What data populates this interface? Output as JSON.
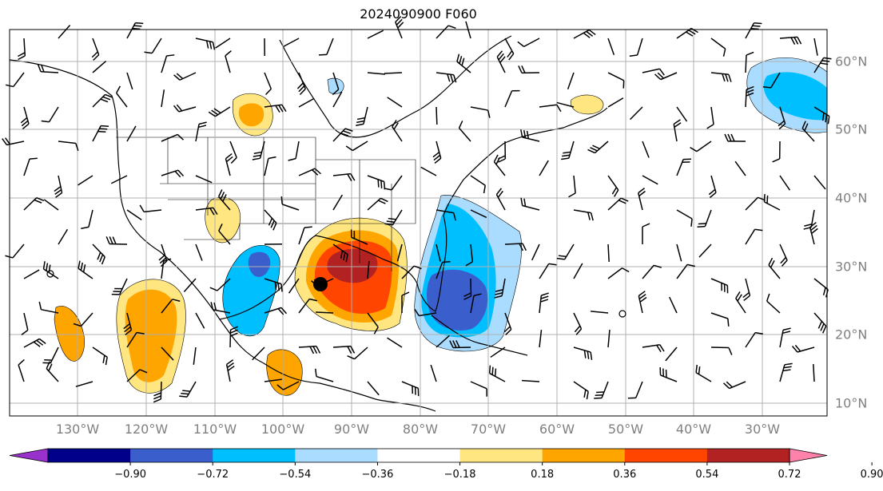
{
  "title": "2024090900 F060",
  "map": {
    "lon_labels": [
      "130°W",
      "120°W",
      "110°W",
      "100°W",
      "90°W",
      "80°W",
      "70°W",
      "60°W",
      "50°W",
      "40°W",
      "30°W"
    ],
    "lat_labels": [
      "60°N",
      "50°N",
      "40°N",
      "30°N",
      "20°N",
      "10°N"
    ],
    "grid": "on",
    "storm_marker": "hurricane-center",
    "fields": [
      "shaded anomaly",
      "coastlines",
      "state borders",
      "wind barbs"
    ]
  },
  "colorbar": {
    "tick_labels": [
      "−0.90",
      "−0.72",
      "−0.54",
      "−0.36",
      "−0.18",
      "0.18",
      "0.36",
      "0.54",
      "0.72",
      "0.90"
    ],
    "colors": [
      "#9932cc",
      "#00008b",
      "#3a5fcd",
      "#00bfff",
      "#aadcff",
      "#ffffff",
      "#ffe680",
      "#ffa500",
      "#ff4500",
      "#b22222",
      "#ff82ab"
    ],
    "extend": "both"
  }
}
